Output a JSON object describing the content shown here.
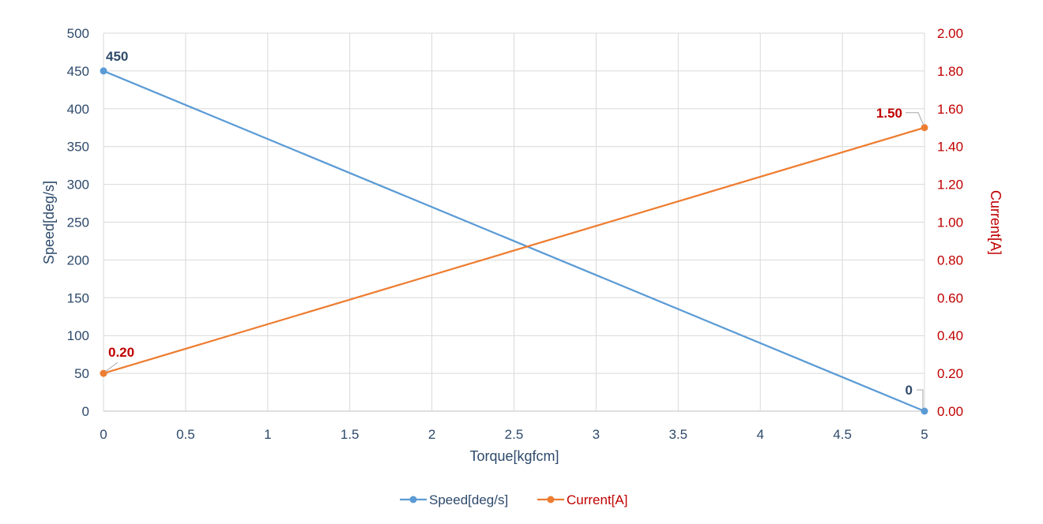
{
  "chart_data": {
    "type": "line",
    "title": "",
    "xlabel": "Torque[kgfcm]",
    "ylabel": "Speed[deg/s]",
    "y2label": "Current[A]",
    "x_ticks": [
      "0",
      "0.5",
      "1",
      "1.5",
      "2",
      "2.5",
      "3",
      "3.5",
      "4",
      "4.5",
      "5"
    ],
    "y_ticks": [
      "0",
      "50",
      "100",
      "150",
      "200",
      "250",
      "300",
      "350",
      "400",
      "450",
      "500"
    ],
    "y2_ticks": [
      "0.00",
      "0.20",
      "0.40",
      "0.60",
      "0.80",
      "1.00",
      "1.20",
      "1.40",
      "1.60",
      "1.80",
      "2.00"
    ],
    "xlim": [
      0,
      5
    ],
    "ylim": [
      0,
      500
    ],
    "y2lim": [
      0,
      2
    ],
    "grid": true,
    "legend_position": "bottom",
    "series": [
      {
        "name": "Speed[deg/s]",
        "axis": "left",
        "color": "#5b9bd5",
        "x": [
          0,
          5
        ],
        "y": [
          450,
          0
        ],
        "labels": [
          "450",
          "0"
        ]
      },
      {
        "name": "Current[A]",
        "axis": "right",
        "color": "#ed7d31",
        "x": [
          0,
          5
        ],
        "y": [
          0.2,
          1.5
        ],
        "labels": [
          "0.20",
          "1.50"
        ]
      }
    ]
  }
}
